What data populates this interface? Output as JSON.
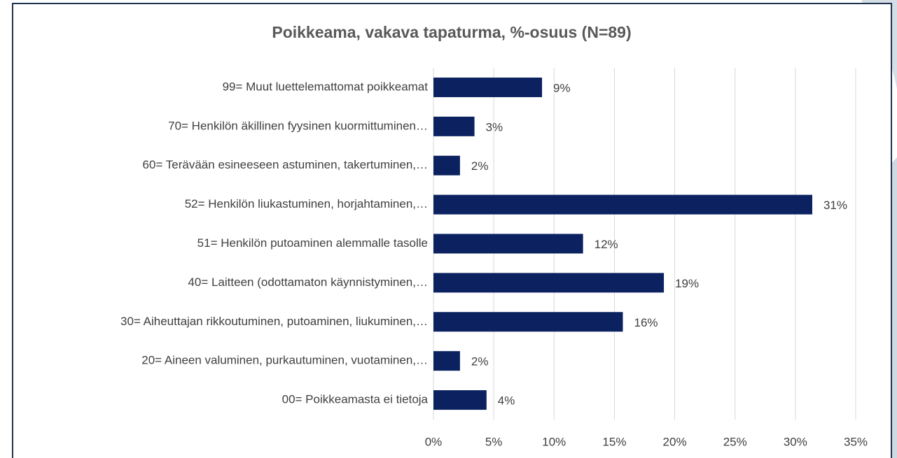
{
  "chart_data": {
    "type": "bar",
    "orientation": "horizontal",
    "title": "Poikkeama, vakava tapaturma, %-osuus (N=89)",
    "categories": [
      "99= Muut luettelemattomat poikkeamat",
      "70= Henkilön äkillinen fyysinen kuormittuminen…",
      "60= Terävään esineeseen astuminen, takertuminen,…",
      "52= Henkilön liukastuminen, horjahtaminen,…",
      "51= Henkilön putoaminen alemmalle tasolle",
      "40= Laitteen (odottamaton käynnistyminen,…",
      "30= Aiheuttajan rikkoutuminen, putoaminen, liukuminen,…",
      "20= Aineen valuminen, purkautuminen, vuotaminen,…",
      "00= Poikkeamasta ei tietoja"
    ],
    "values": [
      9.0,
      3.4,
      2.2,
      31.4,
      12.4,
      19.1,
      15.7,
      2.2,
      4.4
    ],
    "value_labels": [
      "9%",
      "3%",
      "2%",
      "31%",
      "12%",
      "19%",
      "16%",
      "2%",
      "4%"
    ],
    "color": "#0b2160",
    "xlim": [
      0,
      35
    ],
    "xticks": [
      {
        "value": 0,
        "label": "0%"
      },
      {
        "value": 5,
        "label": "5%"
      },
      {
        "value": 10,
        "label": "10%"
      },
      {
        "value": 15,
        "label": "15%"
      },
      {
        "value": 20,
        "label": "20%"
      },
      {
        "value": 25,
        "label": "25%"
      },
      {
        "value": 30,
        "label": "30%"
      },
      {
        "value": 35,
        "label": "35%"
      }
    ],
    "grid": true
  }
}
